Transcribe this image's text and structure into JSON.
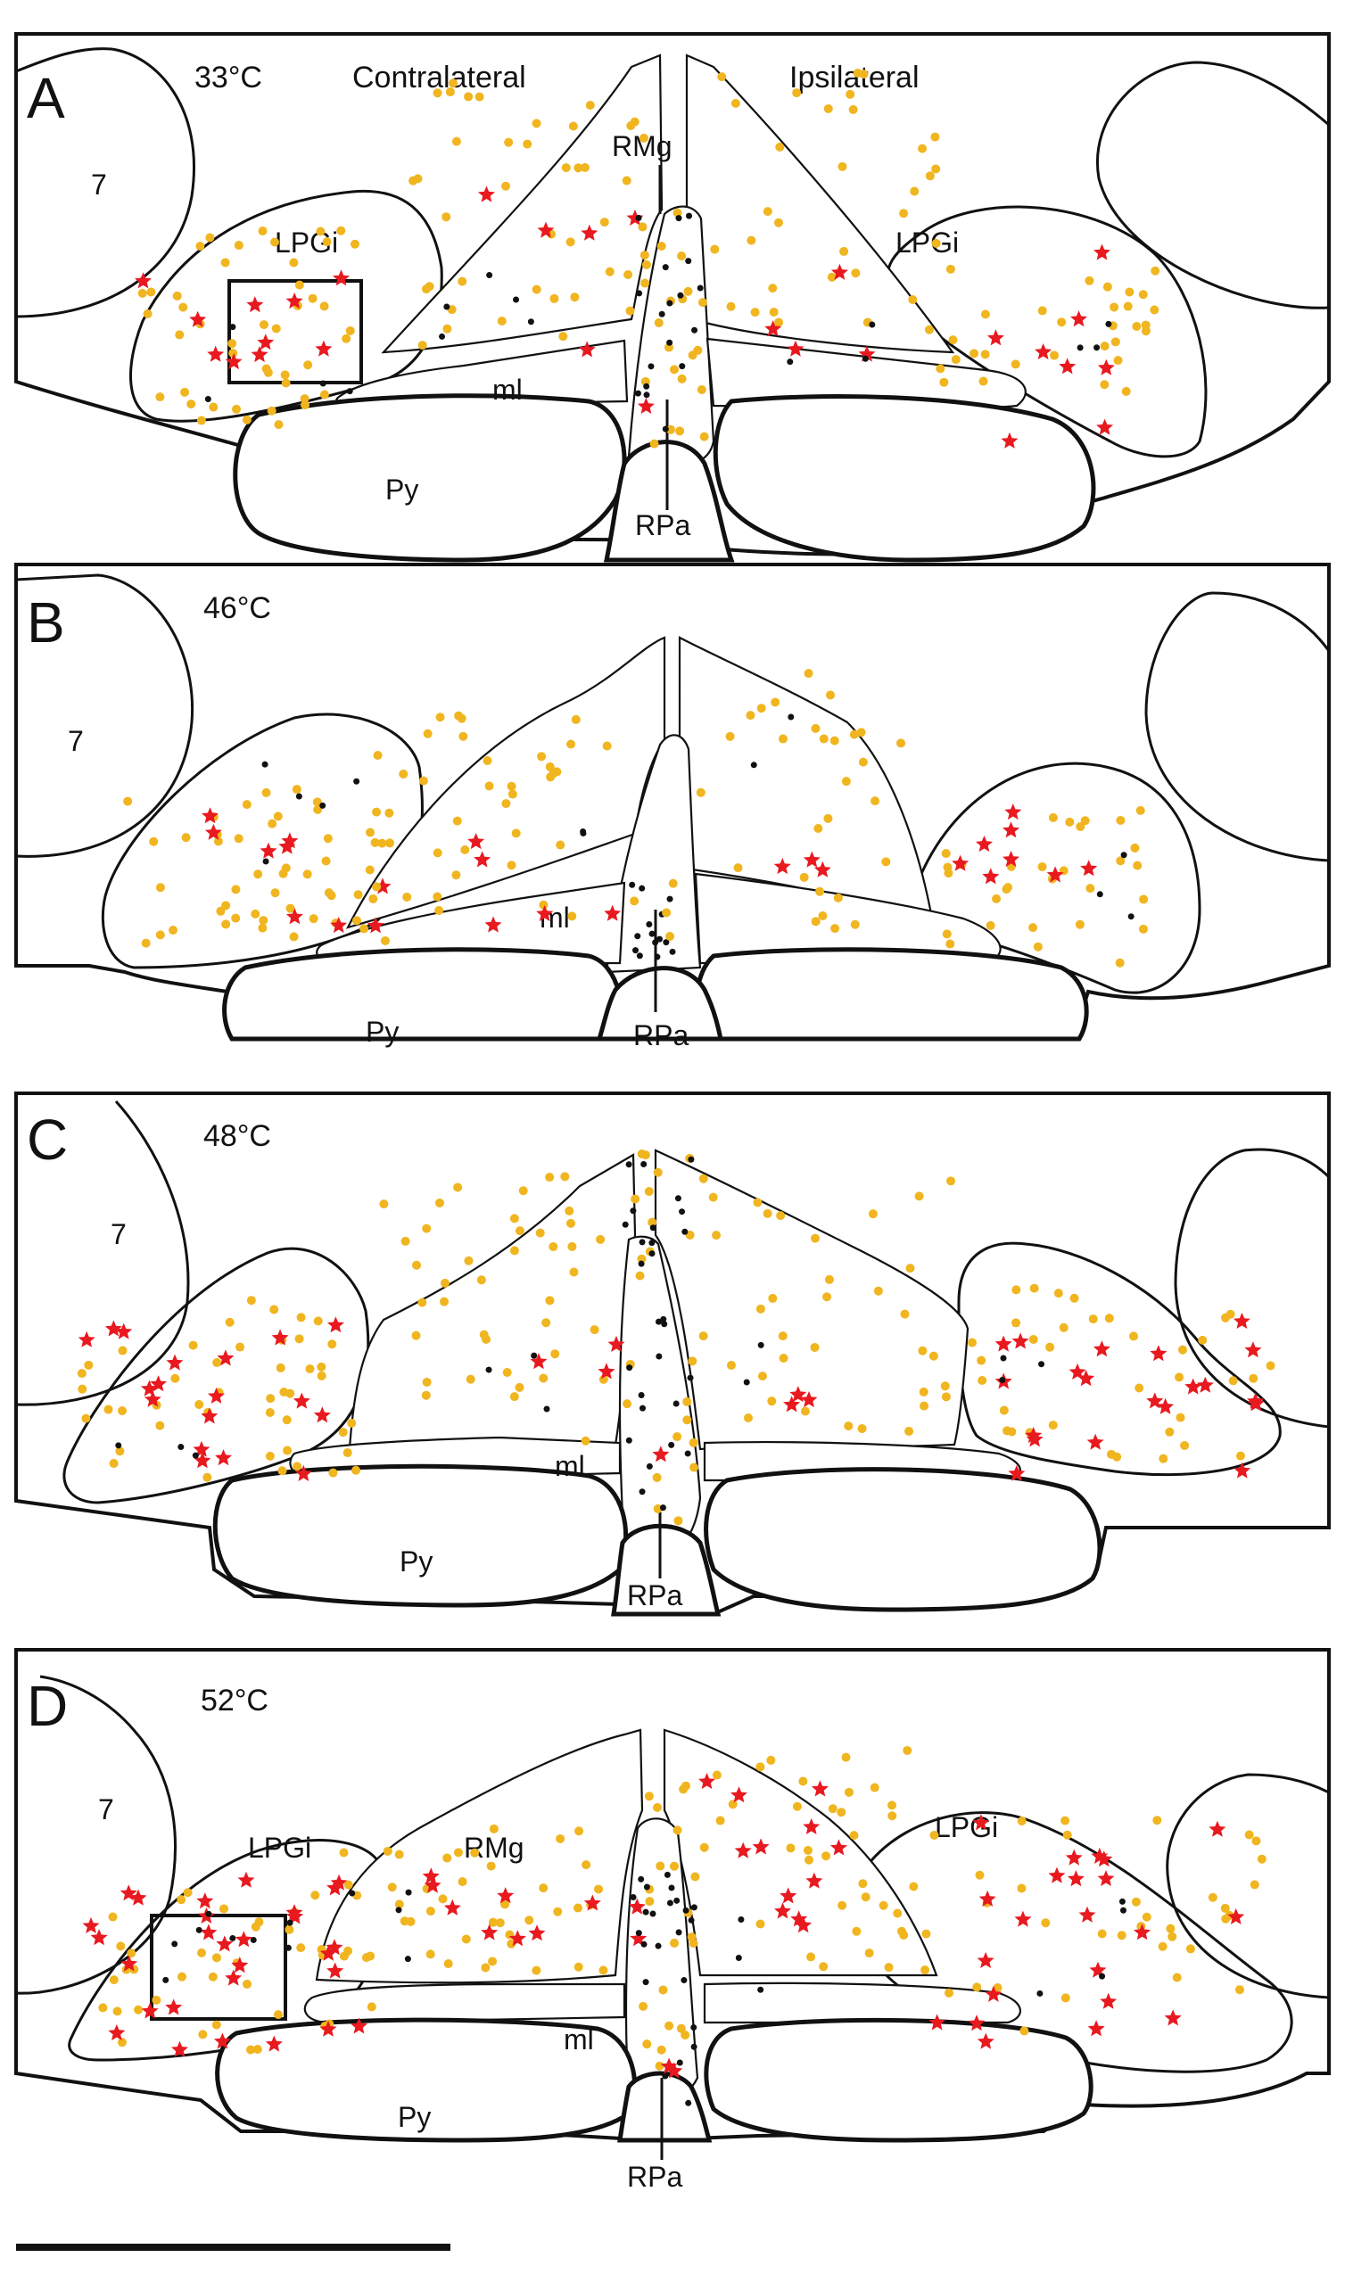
{
  "colors": {
    "neuron_yellow": "#f0b51f",
    "neuron_black": "#111111",
    "neuron_red_star": "#e8191f"
  },
  "labels": {
    "contralateral": "Contralateral",
    "ipsilateral": "Ipsilateral",
    "seven": "7",
    "lpgi": "LPGi",
    "rmg": "RMg",
    "ml": "ml",
    "py": "Py",
    "rpa": "RPa"
  },
  "panels": [
    {
      "letter": "A",
      "temperature": "33°C"
    },
    {
      "letter": "B",
      "temperature": "46°C"
    },
    {
      "letter": "C",
      "temperature": "48°C"
    },
    {
      "letter": "D",
      "temperature": "52°C"
    }
  ]
}
